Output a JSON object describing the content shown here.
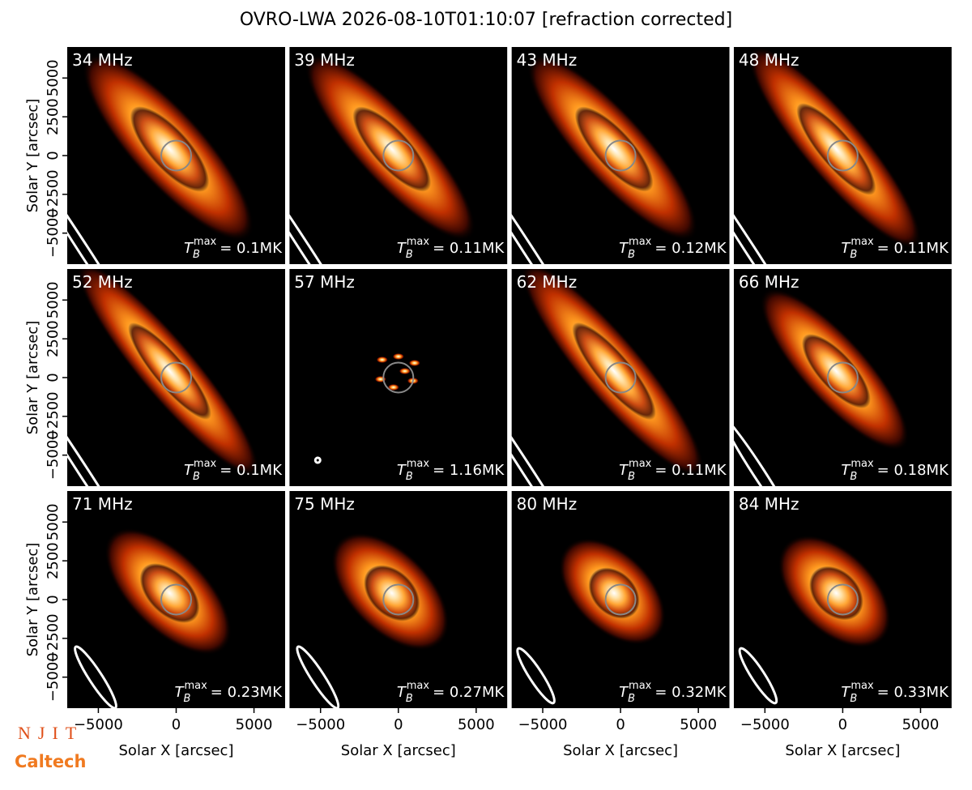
{
  "title": "OVRO-LWA 2026-08-10T01:10:07 [refraction corrected]",
  "logos": [
    "NJIT",
    "Caltech"
  ],
  "chart_data": [
    {
      "type": "image",
      "title": "34 MHz",
      "annotation": {
        "symbol": "T",
        "subscript": "B",
        "superscript": "max",
        "text": "= 0.1MK"
      },
      "xlim": [
        -7000,
        7000
      ],
      "ylim": [
        -7000,
        7000
      ],
      "ylabel": "Solar Y [arcsec]",
      "yticks": [
        {
          "value": -5000,
          "label": "−5000"
        },
        {
          "value": -2500,
          "label": "−2500"
        },
        0,
        2500,
        5000
      ]
    },
    {
      "type": "image",
      "title": "39 MHz",
      "annotation": {
        "symbol": "T",
        "subscript": "B",
        "superscript": "max",
        "text": "= 0.11MK"
      },
      "xlim": [
        -7000,
        7000
      ],
      "ylim": [
        -7000,
        7000
      ]
    },
    {
      "type": "image",
      "title": "43 MHz",
      "annotation": {
        "symbol": "T",
        "subscript": "B",
        "superscript": "max",
        "text": "= 0.12MK"
      },
      "xlim": [
        -7000,
        7000
      ],
      "ylim": [
        -7000,
        7000
      ]
    },
    {
      "type": "image",
      "title": "48 MHz",
      "annotation": {
        "symbol": "T",
        "subscript": "B",
        "superscript": "max",
        "text": "= 0.11MK"
      },
      "xlim": [
        -7000,
        7000
      ],
      "ylim": [
        -7000,
        7000
      ]
    },
    {
      "type": "image",
      "title": "52 MHz",
      "annotation": {
        "symbol": "T",
        "subscript": "B",
        "superscript": "max",
        "text": "= 0.1MK"
      },
      "xlim": [
        -7000,
        7000
      ],
      "ylim": [
        -7000,
        7000
      ],
      "ylabel": "Solar Y [arcsec]",
      "yticks": [
        {
          "value": -5000,
          "label": "−5000"
        },
        {
          "value": -2500,
          "label": "−2500"
        },
        0,
        2500,
        5000
      ]
    },
    {
      "type": "image",
      "title": "57 MHz",
      "annotation": {
        "symbol": "T",
        "subscript": "B",
        "superscript": "max",
        "text": "= 1.16MK"
      },
      "xlim": [
        -7000,
        7000
      ],
      "ylim": [
        -7000,
        7000
      ]
    },
    {
      "type": "image",
      "title": "62 MHz",
      "annotation": {
        "symbol": "T",
        "subscript": "B",
        "superscript": "max",
        "text": "= 0.11MK"
      },
      "xlim": [
        -7000,
        7000
      ],
      "ylim": [
        -7000,
        7000
      ]
    },
    {
      "type": "image",
      "title": "66 MHz",
      "annotation": {
        "symbol": "T",
        "subscript": "B",
        "superscript": "max",
        "text": "= 0.18MK"
      },
      "xlim": [
        -7000,
        7000
      ],
      "ylim": [
        -7000,
        7000
      ]
    },
    {
      "type": "image",
      "title": "71 MHz",
      "annotation": {
        "symbol": "T",
        "subscript": "B",
        "superscript": "max",
        "text": "= 0.23MK"
      },
      "xlim": [
        -7000,
        7000
      ],
      "ylim": [
        -7000,
        7000
      ],
      "ylabel": "Solar Y [arcsec]",
      "yticks": [
        {
          "value": -5000,
          "label": "−5000"
        },
        {
          "value": -2500,
          "label": "−2500"
        },
        0,
        2500,
        5000
      ],
      "xlabel": "Solar X [arcsec]",
      "xticks": [
        {
          "value": -5000,
          "label": "−5000"
        },
        0,
        5000
      ]
    },
    {
      "type": "image",
      "title": "75 MHz",
      "annotation": {
        "symbol": "T",
        "subscript": "B",
        "superscript": "max",
        "text": "= 0.27MK"
      },
      "xlim": [
        -7000,
        7000
      ],
      "ylim": [
        -7000,
        7000
      ],
      "xlabel": "Solar X [arcsec]",
      "xticks": [
        {
          "value": -5000,
          "label": "−5000"
        },
        0,
        5000
      ]
    },
    {
      "type": "image",
      "title": "80 MHz",
      "annotation": {
        "symbol": "T",
        "subscript": "B",
        "superscript": "max",
        "text": "= 0.32MK"
      },
      "xlim": [
        -7000,
        7000
      ],
      "ylim": [
        -7000,
        7000
      ],
      "xlabel": "Solar X [arcsec]",
      "xticks": [
        {
          "value": -5000,
          "label": "−5000"
        },
        0,
        5000
      ]
    },
    {
      "type": "image",
      "title": "84 MHz",
      "annotation": {
        "symbol": "T",
        "subscript": "B",
        "superscript": "max",
        "text": "= 0.33MK"
      },
      "xlim": [
        -7000,
        7000
      ],
      "ylim": [
        -7000,
        7000
      ],
      "xlabel": "Solar X [arcsec]",
      "xticks": [
        {
          "value": -5000,
          "label": "−5000"
        },
        0,
        5000
      ]
    }
  ]
}
